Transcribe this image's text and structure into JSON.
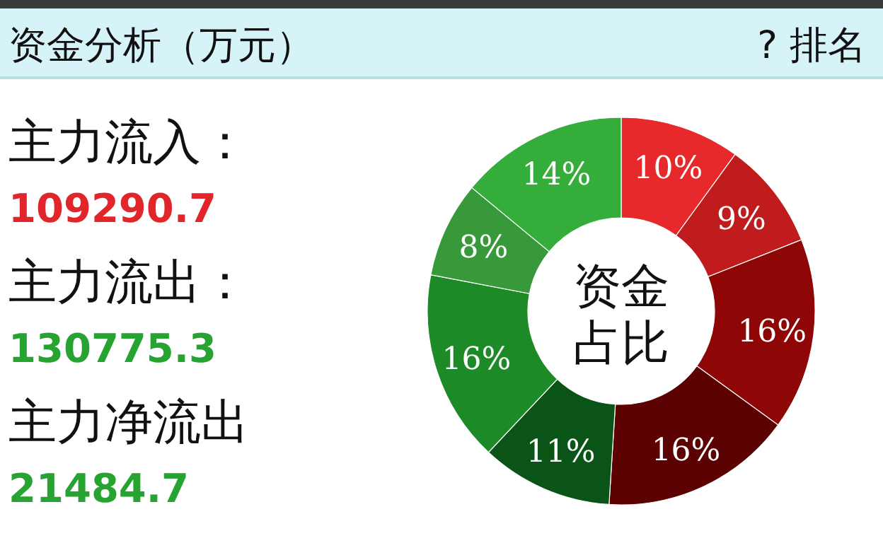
{
  "chart_data": {
    "type": "donut",
    "title": "资金分析（万元）",
    "categories": [
      null,
      null,
      null,
      null,
      null,
      null,
      null,
      null
    ],
    "values": [
      10,
      9,
      16,
      16,
      11,
      16,
      8,
      14
    ],
    "value_labels": [
      "10%",
      "9%",
      "16%",
      "16%",
      "11%",
      "16%",
      "8%",
      "14%"
    ],
    "colors": [
      "#e8292b",
      "#c01c1e",
      "#8e0606",
      "#5c0202",
      "#0a5418",
      "#1c8a26",
      "#37993a",
      "#34ad3a"
    ],
    "annotations": [
      "? 排名",
      "主力流入：",
      "109290.7",
      "主力流出：",
      "130775.3",
      "主力净流出",
      "21484.7",
      "资金占比"
    ]
  }
}
